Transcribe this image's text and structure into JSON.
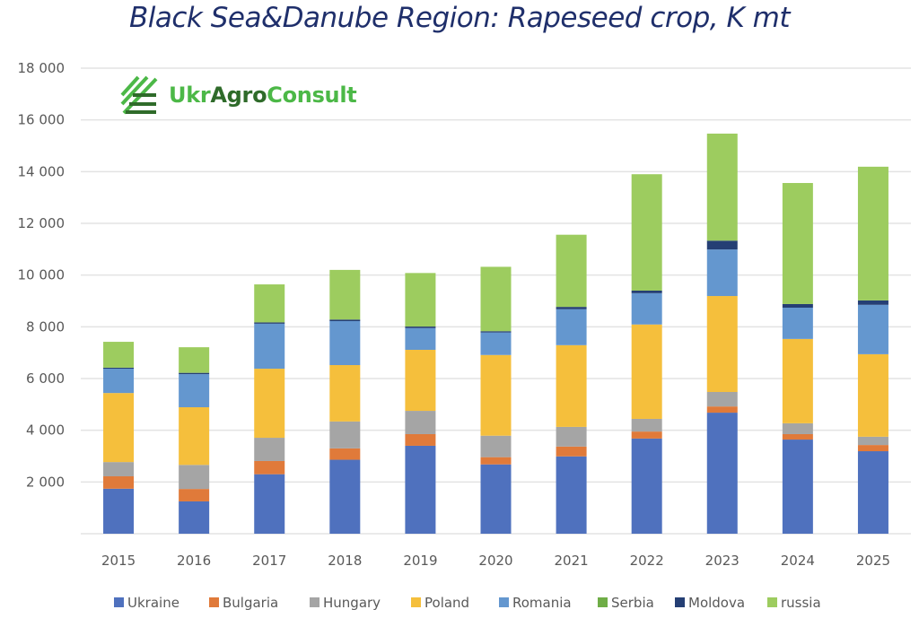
{
  "logo": {
    "part1": "Ukr",
    "part2": "Agro",
    "part3": "Consult"
  },
  "colors": {
    "Ukraine": "#4f71be",
    "Bulgaria": "#e07a3a",
    "Hungary": "#a5a5a5",
    "Poland": "#f5bf3c",
    "Romania": "#6497cf",
    "Serbia": "#6fad47",
    "Moldova": "#253f74",
    "russia": "#9dcc5f",
    "grid": "#e3e3e3",
    "logo_light": "#4cb847",
    "logo_dark": "#2f6b2a"
  },
  "chart_data": {
    "type": "bar",
    "stacked": true,
    "title": "Black Sea&Danube Region: Rapeseed crop, K mt",
    "xlabel": "",
    "ylabel": "",
    "ylim": [
      0,
      18000
    ],
    "yticks": [
      0,
      2000,
      4000,
      6000,
      8000,
      10000,
      12000,
      14000,
      16000,
      18000
    ],
    "ytick_labels": [
      "",
      "2 000",
      "4 000",
      "6 000",
      "8 000",
      "10 000",
      "12 000",
      "14 000",
      "16 000",
      "18 000"
    ],
    "grid": true,
    "legend_position": "bottom",
    "categories": [
      "2015",
      "2016",
      "2017",
      "2018",
      "2019",
      "2020",
      "2021",
      "2022",
      "2023",
      "2024",
      "2025"
    ],
    "series": [
      {
        "name": "Ukraine",
        "values": [
          1740,
          1250,
          2300,
          2860,
          3400,
          2680,
          2990,
          3680,
          4680,
          3640,
          3190
        ]
      },
      {
        "name": "Bulgaria",
        "values": [
          480,
          480,
          510,
          440,
          450,
          280,
          380,
          270,
          240,
          210,
          240
        ]
      },
      {
        "name": "Hungary",
        "values": [
          550,
          930,
          900,
          1040,
          900,
          830,
          760,
          490,
          560,
          420,
          320
        ]
      },
      {
        "name": "Poland",
        "values": [
          2670,
          2230,
          2670,
          2180,
          2360,
          3120,
          3160,
          3650,
          3710,
          3260,
          3190
        ]
      },
      {
        "name": "Romania",
        "values": [
          940,
          1280,
          1740,
          1700,
          840,
          870,
          1390,
          1210,
          1800,
          1210,
          1910
        ]
      },
      {
        "name": "Serbia",
        "values": [
          0,
          0,
          0,
          0,
          0,
          0,
          0,
          0,
          0,
          0,
          0
        ]
      },
      {
        "name": "Moldova",
        "values": [
          40,
          50,
          50,
          60,
          60,
          50,
          90,
          100,
          340,
          140,
          170
        ]
      },
      {
        "name": "russia",
        "values": [
          1000,
          990,
          1470,
          1920,
          2070,
          2490,
          2790,
          4500,
          4140,
          4680,
          5170
        ]
      }
    ]
  }
}
